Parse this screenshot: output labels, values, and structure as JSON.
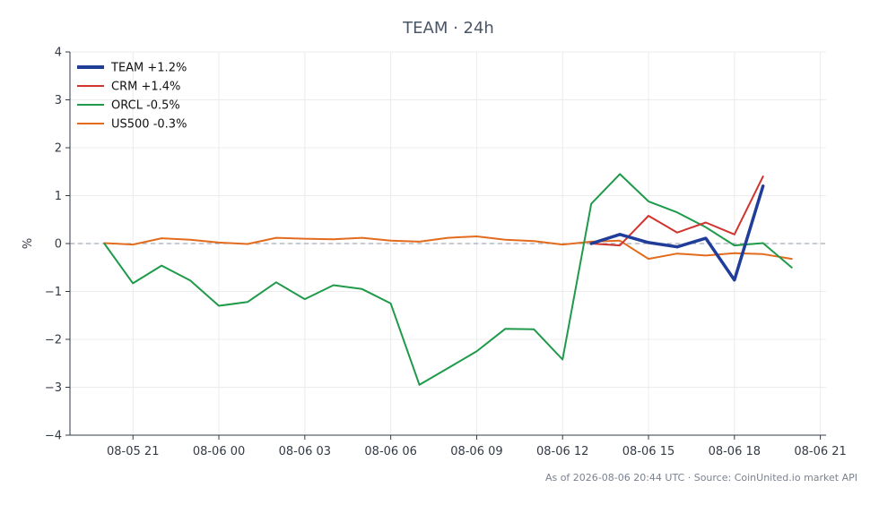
{
  "chart_data": {
    "type": "line",
    "title": "TEAM · 24h",
    "ylabel": "%",
    "xlabel": "",
    "ylim": [
      -4,
      4
    ],
    "yticks": [
      -4,
      -3,
      -2,
      -1,
      0,
      1,
      2,
      3,
      4
    ],
    "ytick_labels": [
      "−4",
      "−3",
      "−2",
      "−1",
      "0",
      "1",
      "2",
      "3",
      "4"
    ],
    "xlim": [
      "08-05 18:48",
      "08-06 21:12"
    ],
    "xticks": [
      "08-05 21",
      "08-06 00",
      "08-06 03",
      "08-06 06",
      "08-06 09",
      "08-06 12",
      "08-06 15",
      "08-06 18",
      "08-06 21"
    ],
    "grid": true,
    "baseline": 0,
    "legend_position": "top-left",
    "series": [
      {
        "name": "TEAM +1.2%",
        "color": "#1f3d99",
        "x": [
          "08-06 13:00",
          "08-06 14:00",
          "08-06 15:00",
          "08-06 16:00",
          "08-06 17:00",
          "08-06 18:00",
          "08-06 19:00"
        ],
        "values": [
          0.0,
          0.19,
          0.02,
          -0.07,
          0.11,
          -0.76,
          1.2
        ]
      },
      {
        "name": "CRM +1.4%",
        "color": "#d1342f",
        "x": [
          "08-06 13:00",
          "08-06 14:00",
          "08-06 15:00",
          "08-06 16:00",
          "08-06 17:00",
          "08-06 18:00",
          "08-06 19:00"
        ],
        "values": [
          0.0,
          -0.04,
          0.58,
          0.23,
          0.44,
          0.19,
          1.4
        ]
      },
      {
        "name": "ORCL -0.5%",
        "color": "#1f9a4a",
        "x": [
          "08-05 20:00",
          "08-05 21:00",
          "08-05 22:00",
          "08-05 23:00",
          "08-06 00:00",
          "08-06 01:00",
          "08-06 02:00",
          "08-06 03:00",
          "08-06 04:00",
          "08-06 05:00",
          "08-06 06:00",
          "08-06 07:00",
          "08-06 08:00",
          "08-06 09:00",
          "08-06 10:00",
          "08-06 11:00",
          "08-06 12:00",
          "08-06 13:00",
          "08-06 14:00",
          "08-06 15:00",
          "08-06 16:00",
          "08-06 17:00",
          "08-06 18:00",
          "08-06 19:00",
          "08-06 20:00"
        ],
        "values": [
          0.0,
          -0.83,
          -0.46,
          -0.77,
          -1.3,
          -1.22,
          -0.81,
          -1.16,
          -0.87,
          -0.95,
          -1.25,
          -2.95,
          -2.6,
          -2.25,
          -1.78,
          -1.79,
          -2.42,
          0.83,
          1.45,
          0.88,
          0.65,
          0.34,
          -0.04,
          0.01,
          -0.5
        ]
      },
      {
        "name": "US500 -0.3%",
        "color": "#e26b1e",
        "x": [
          "08-05 20:00",
          "08-05 21:00",
          "08-05 22:00",
          "08-05 23:00",
          "08-06 00:00",
          "08-06 01:00",
          "08-06 02:00",
          "08-06 03:00",
          "08-06 04:00",
          "08-06 05:00",
          "08-06 06:00",
          "08-06 07:00",
          "08-06 08:00",
          "08-06 09:00",
          "08-06 10:00",
          "08-06 11:00",
          "08-06 12:00",
          "08-06 13:00",
          "08-06 14:00",
          "08-06 15:00",
          "08-06 16:00",
          "08-06 17:00",
          "08-06 18:00",
          "08-06 19:00",
          "08-06 20:00"
        ],
        "values": [
          0.01,
          -0.02,
          0.11,
          0.08,
          0.02,
          -0.01,
          0.12,
          0.1,
          0.09,
          0.12,
          0.06,
          0.04,
          0.12,
          0.15,
          0.08,
          0.05,
          -0.02,
          0.04,
          0.06,
          -0.32,
          -0.21,
          -0.25,
          -0.2,
          -0.22,
          -0.32
        ]
      }
    ]
  },
  "footer": "As of 2026-08-06 20:44 UTC · Source: CoinUnited.io market API"
}
